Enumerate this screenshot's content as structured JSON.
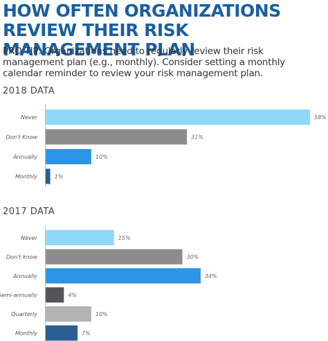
{
  "title": "HOW OFTEN ORGANIZATIONS REVIEW THEIR RISK MANAGEMENT PLAN",
  "tip": "PRO TIP: Organizations need to regularly review their risk management plan (e.g., monthly). Consider setting a monthly calendar reminder to review your risk management plan.",
  "chart_data": [
    {
      "type": "bar",
      "orientation": "horizontal",
      "title": "2018 DATA",
      "categories": [
        "Never",
        "Don't Know",
        "Annually",
        "Monthly"
      ],
      "values": [
        58,
        31,
        10,
        1
      ],
      "value_labels": [
        "58%",
        "31%",
        "10%",
        "1%"
      ],
      "colors": [
        "#8fd8f8",
        "#8e8c8e",
        "#2e95e6",
        "#2a5e94"
      ],
      "xlim": [
        0,
        58
      ]
    },
    {
      "type": "bar",
      "orientation": "horizontal",
      "title": "2017 DATA",
      "categories": [
        "Never",
        "Don't know",
        "Annually",
        "Semi-annually",
        "Quarterly",
        "Monthly"
      ],
      "values": [
        15,
        30,
        34,
        4,
        10,
        7
      ],
      "value_labels": [
        "15%",
        "30%",
        "34%",
        "4%",
        "10%",
        "7%"
      ],
      "colors": [
        "#8fd8f8",
        "#8e8c8e",
        "#2e95e6",
        "#555558",
        "#b3b3b3",
        "#2a5e94"
      ],
      "xlim": [
        0,
        58
      ]
    }
  ]
}
